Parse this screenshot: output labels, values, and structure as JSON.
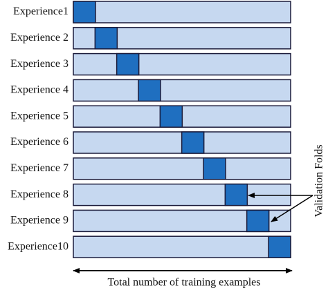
{
  "rows": [
    "Experience1",
    "Experience 2",
    "Experience 3",
    "Experience 4",
    "Experience 5",
    "Experience 6",
    "Experience 7",
    "Experience 8",
    "Experience 9",
    "Experience10"
  ],
  "annotation": "Validation Folds",
  "axis_label": "Total number of training examples"
}
